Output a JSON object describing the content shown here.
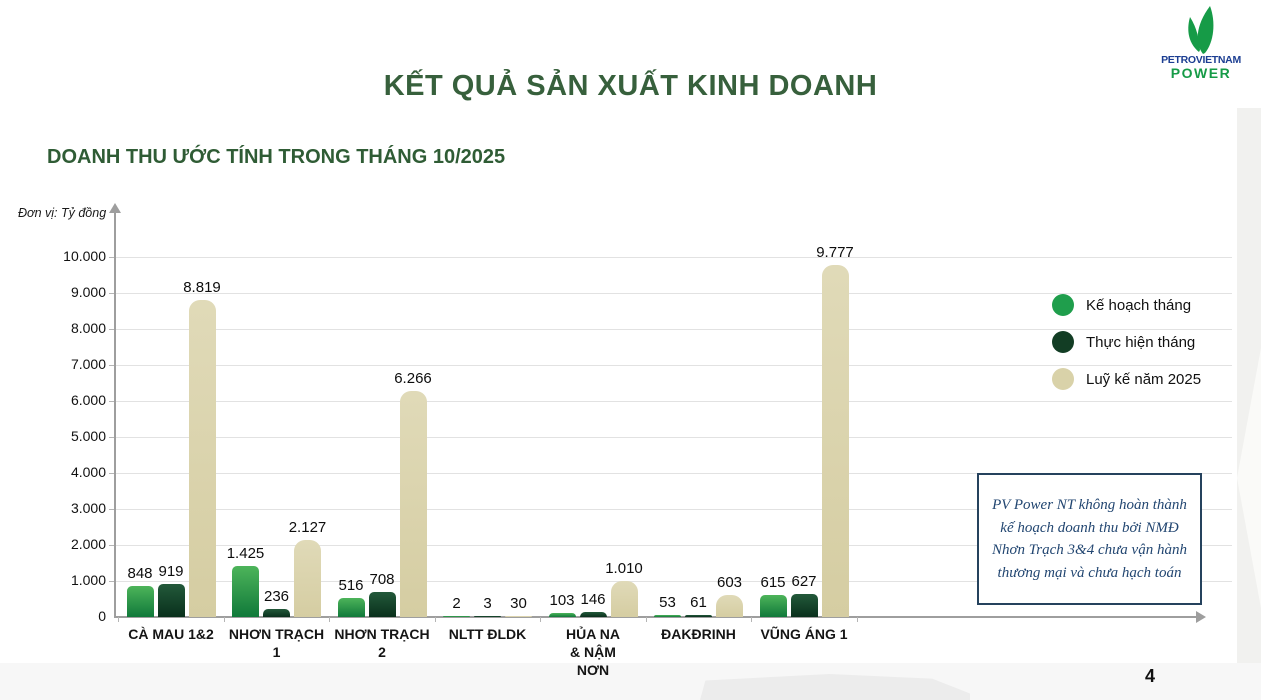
{
  "page": {
    "title": "KẾT QUẢ SẢN XUẤT KINH DOANH",
    "title_color": "#37603c",
    "subtitle_color": "#2f5c35",
    "page_number": "4"
  },
  "logo": {
    "line1": "PETROVIETNAM",
    "line2": "POWER",
    "flame_color": "#169b47",
    "line1_color": "#1c3e92",
    "line2_color": "#169b47"
  },
  "chart_data": {
    "type": "bar",
    "title": "DOANH THU ƯỚC TÍNH TRONG THÁNG 10/2025",
    "unit_label": "Đơn vị: Tỷ đồng",
    "categories": [
      "CÀ MAU 1&2",
      "NHƠN TRẠCH\n1",
      "NHƠN TRẠCH\n2",
      "NLTT ĐLDK",
      "HỦA NA\n& NẬM\nNƠN",
      "ĐAKĐRINH",
      "VŨNG ÁNG 1"
    ],
    "y_ticks": [
      "0",
      "1.000",
      "2.000",
      "3.000",
      "4.000",
      "5.000",
      "6.000",
      "7.000",
      "8.000",
      "9.000",
      "10.000"
    ],
    "ylim": [
      0,
      10000
    ],
    "grid": true,
    "legend_position": "inside-right",
    "series": [
      {
        "name": "Kế hoạch tháng",
        "color": "#1f9e4c",
        "gradient_top": "#4db45a",
        "gradient_bottom": "#10793a",
        "values": [
          848,
          1425,
          516,
          2,
          103,
          53,
          615
        ],
        "labels": [
          "848",
          "1.425",
          "516",
          "2",
          "103",
          "53",
          "615"
        ]
      },
      {
        "name": "Thực hiện tháng",
        "color": "#123d24",
        "gradient_top": "#23593a",
        "gradient_bottom": "#09301c",
        "values": [
          919,
          236,
          708,
          3,
          146,
          61,
          627
        ],
        "labels": [
          "919",
          "236",
          "708",
          "3",
          "146",
          "61",
          "627"
        ]
      },
      {
        "name": "Luỹ kế năm 2025",
        "color": "#d9d2a9",
        "gradient_top": "#e0dab8",
        "gradient_bottom": "#d5cda2",
        "values": [
          8819,
          2127,
          6266,
          30,
          1010,
          603,
          9777
        ],
        "labels": [
          "8.819",
          "2.127",
          "6.266",
          "30",
          "1.010",
          "603",
          "9.777"
        ]
      }
    ]
  },
  "annotation": {
    "text": "PV Power NT không hoàn thành kế hoạch doanh thu bởi NMĐ Nhơn Trạch 3&4 chưa vận hành thương mại và chưa hạch toán",
    "border_color": "#25425d",
    "text_color": "#224671"
  }
}
